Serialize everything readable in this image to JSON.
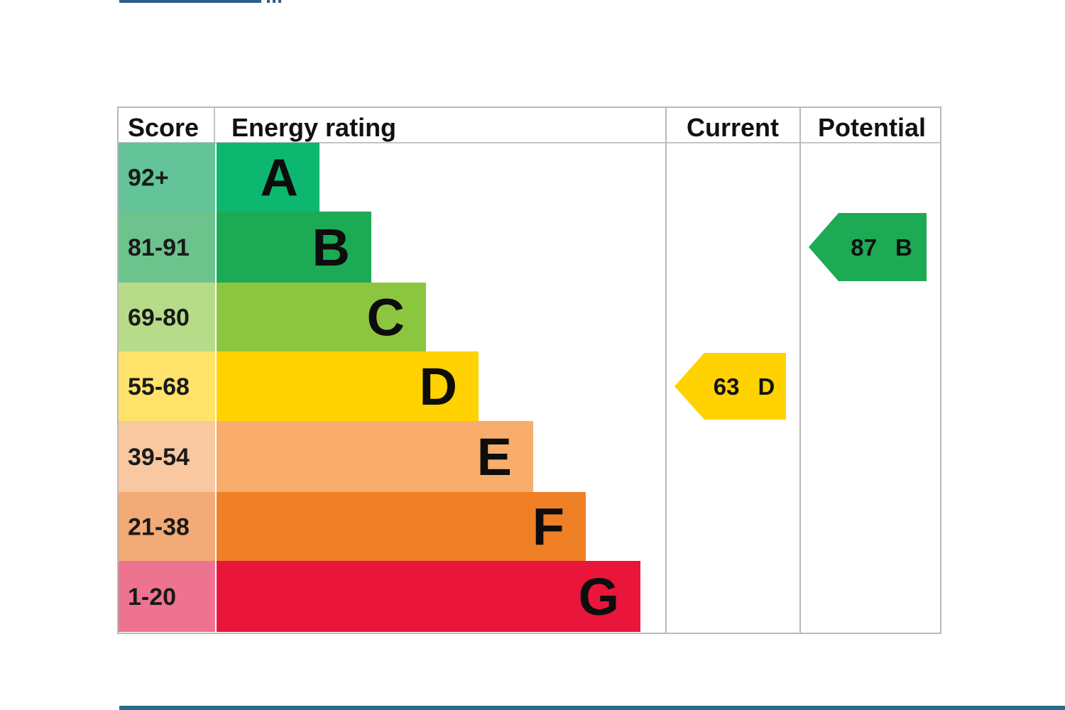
{
  "chart_data": {
    "type": "bar",
    "headers": {
      "score": "Score",
      "energy_rating": "Energy rating",
      "current": "Current",
      "potential": "Potential"
    },
    "bands": [
      {
        "letter": "A",
        "score": "92+",
        "color": "#0db770",
        "score_bg": "#63c49a"
      },
      {
        "letter": "B",
        "score": "81-91",
        "color": "#1daa55",
        "score_bg": "#6cc38c"
      },
      {
        "letter": "C",
        "score": "69-80",
        "color": "#8cc63f",
        "score_bg": "#b6dc8a"
      },
      {
        "letter": "D",
        "score": "55-68",
        "color": "#ffd200",
        "score_bg": "#ffe26a"
      },
      {
        "letter": "E",
        "score": "39-54",
        "color": "#f8ad6d",
        "score_bg": "#f9c7a0"
      },
      {
        "letter": "F",
        "score": "21-38",
        "color": "#ef8026",
        "score_bg": "#f2ab77"
      },
      {
        "letter": "G",
        "score": "1-20",
        "color": "#e9153b",
        "score_bg": "#ee7391"
      }
    ],
    "current": {
      "value": 63,
      "band": "D",
      "color": "#ffd200"
    },
    "potential": {
      "value": 87,
      "band": "B",
      "color": "#1daa55"
    }
  }
}
